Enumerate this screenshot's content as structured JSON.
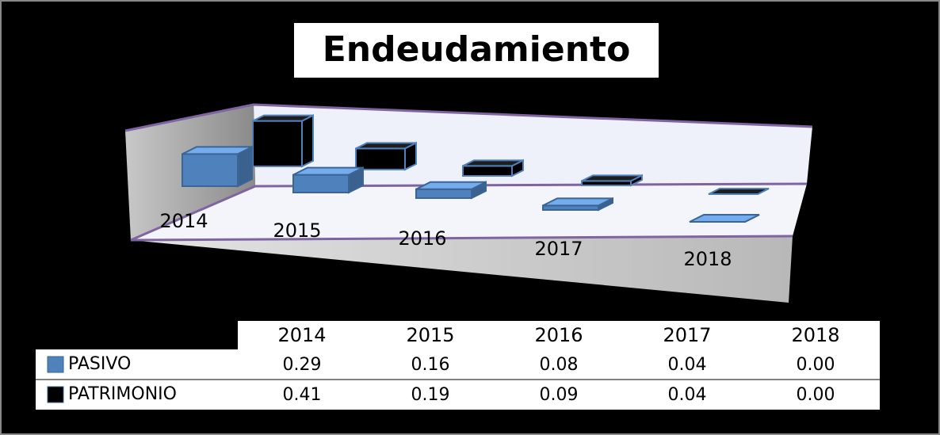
{
  "chart_data": {
    "type": "bar3d",
    "title": "Endeudamiento",
    "categories": [
      "2014",
      "2015",
      "2016",
      "2017",
      "2018"
    ],
    "series": [
      {
        "name": "PASIVO",
        "color": "#4f81bd",
        "values": [
          0.29,
          0.16,
          0.08,
          0.04,
          0.0
        ],
        "value_labels": [
          "0.29",
          "0.16",
          "0.08",
          "0.04",
          "0.00"
        ]
      },
      {
        "name": "PATRIMONIO",
        "color": "#000000",
        "values": [
          0.41,
          0.19,
          0.09,
          0.04,
          0.0
        ],
        "value_labels": [
          "0.41",
          "0.19",
          "0.09",
          "0.04",
          "0.00"
        ]
      }
    ]
  }
}
